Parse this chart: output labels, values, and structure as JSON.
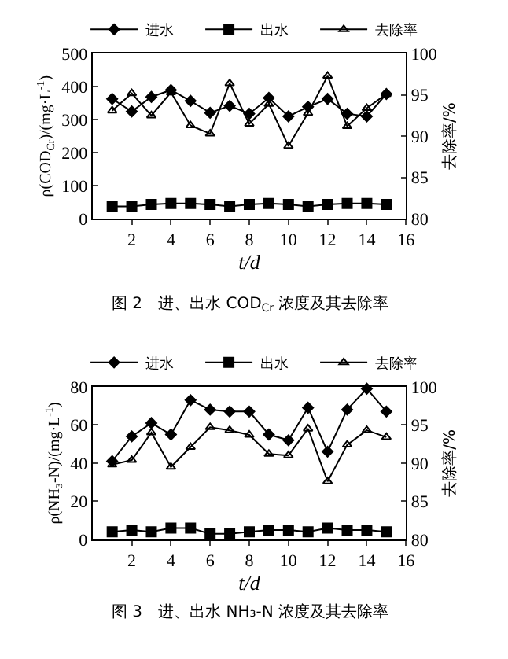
{
  "chart_data": [
    {
      "type": "line",
      "title": "图 2　进、出水 COD$_{Cr}$ 浓度及其去除率",
      "xlabel": "t/d",
      "ylabel": "ρ(COD$_{Cr}$)/(mg·L$^{-1}$)",
      "y2label": "去除率/%",
      "x": [
        1,
        2,
        3,
        4,
        5,
        6,
        7,
        8,
        9,
        10,
        11,
        12,
        13,
        14,
        15
      ],
      "series": [
        {
          "name": "进水",
          "color": "#000000",
          "marker": "diamond",
          "values": [
            363,
            325,
            369,
            390,
            357,
            321,
            342,
            318,
            366,
            310,
            339,
            363,
            318,
            310,
            378
          ]
        },
        {
          "name": "出水",
          "color": "#000000",
          "marker": "square",
          "values": [
            37,
            37,
            43,
            46,
            46,
            43,
            37,
            43,
            46,
            43,
            37,
            43,
            46,
            46,
            43
          ]
        },
        {
          "name": "去除率",
          "color": "#000000",
          "marker": "triangle",
          "axis": "y2",
          "values": [
            93.1,
            95.2,
            92.5,
            95.3,
            91.3,
            90.3,
            96.4,
            91.5,
            93.9,
            88.8,
            92.8,
            97.3,
            91.2,
            93.4,
            95.1
          ]
        }
      ],
      "xlim": [
        0,
        16
      ],
      "xticks": [
        2,
        4,
        6,
        8,
        10,
        12,
        14,
        16
      ],
      "ylim": [
        0,
        500
      ],
      "yticks": [
        0,
        100,
        200,
        300,
        400,
        500
      ],
      "y2lim": [
        80,
        100
      ],
      "y2ticks": [
        80,
        85,
        90,
        95,
        100
      ],
      "legend": "top",
      "line_style": "solid"
    },
    {
      "type": "line",
      "title": "图 3　进、出水 NH₃-N 浓度及其去除率",
      "xlabel": "t/d",
      "ylabel": "ρ(NH₃-N)/(mg·L$^{-1}$)",
      "y2label": "去除率/%",
      "x": [
        1,
        2,
        3,
        4,
        5,
        6,
        7,
        8,
        9,
        10,
        11,
        12,
        13,
        14,
        15
      ],
      "series": [
        {
          "name": "进水",
          "color": "#000000",
          "marker": "diamond",
          "values": [
            41,
            54,
            61,
            55,
            73,
            68,
            67,
            67,
            55,
            52,
            69,
            46,
            68,
            79,
            67
          ]
        },
        {
          "name": "出水",
          "color": "#000000",
          "marker": "square",
          "values": [
            4,
            5,
            4,
            6,
            6,
            3,
            3,
            4,
            5,
            5,
            4,
            6,
            5,
            5,
            4
          ]
        },
        {
          "name": "去除率",
          "color": "#000000",
          "marker": "triangle",
          "axis": "y2",
          "values": [
            89.8,
            90.4,
            94,
            89.5,
            92.1,
            94.7,
            94.3,
            93.7,
            91.2,
            91,
            94.5,
            87.6,
            92.4,
            94.3,
            93.4
          ]
        }
      ],
      "xlim": [
        0,
        16
      ],
      "xticks": [
        2,
        4,
        6,
        8,
        10,
        12,
        14,
        16
      ],
      "ylim": [
        0,
        80
      ],
      "yticks": [
        0,
        20,
        40,
        60,
        80
      ],
      "y2lim": [
        80,
        100
      ],
      "y2ticks": [
        80,
        85,
        90,
        95,
        100
      ],
      "legend": "top",
      "line_style": "solid"
    }
  ]
}
